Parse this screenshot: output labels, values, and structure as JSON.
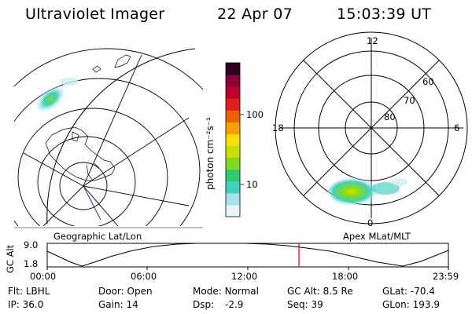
{
  "header": {
    "title": "Ultraviolet Imager",
    "date": "22 Apr 07",
    "time": "15:03:39 UT"
  },
  "left_panel": {
    "label": "Geographic Lat/Lon"
  },
  "right_panel": {
    "label": "Apex MLat/MLT",
    "mlt_labels": [
      "12",
      "18",
      "6",
      "0"
    ],
    "lat_labels": [
      "60",
      "70",
      "80"
    ]
  },
  "colorbar": {
    "title": "photon cm⁻²s⁻¹",
    "ticks": [
      "100",
      "10"
    ],
    "colors": [
      "#e8f4f8",
      "#a6e0e8",
      "#3fd0c0",
      "#2ecc71",
      "#7ddc1f",
      "#c8e000",
      "#f5e000",
      "#f5a000",
      "#f06000",
      "#e02020",
      "#c0002a",
      "#90003a",
      "#300020"
    ]
  },
  "altitude_plot": {
    "ylabel": "GC Alt",
    "ymax_label": "9.0",
    "ymin_label": "1.8",
    "x_ticks": [
      "00:00",
      "06:00",
      "12:00",
      "18:00",
      "23:59"
    ],
    "current_time_marker_color": "#e00000"
  },
  "status": {
    "row1": [
      {
        "label": "Flt:",
        "value": "LBHL"
      },
      {
        "label": "Door:",
        "value": "Open"
      },
      {
        "label": "Mode:",
        "value": "Normal"
      },
      {
        "label": "GC Alt:",
        "value": "8.5 Re"
      },
      {
        "label": "GLat:",
        "value": "-70.4"
      }
    ],
    "row2": [
      {
        "label": "IP:",
        "value": "36.0"
      },
      {
        "label": "Gain:",
        "value": "14"
      },
      {
        "label": "Dsp:",
        "value": "-2.9"
      },
      {
        "label": "Seq:",
        "value": "39"
      },
      {
        "label": "GLon:",
        "value": "193.9"
      }
    ]
  }
}
